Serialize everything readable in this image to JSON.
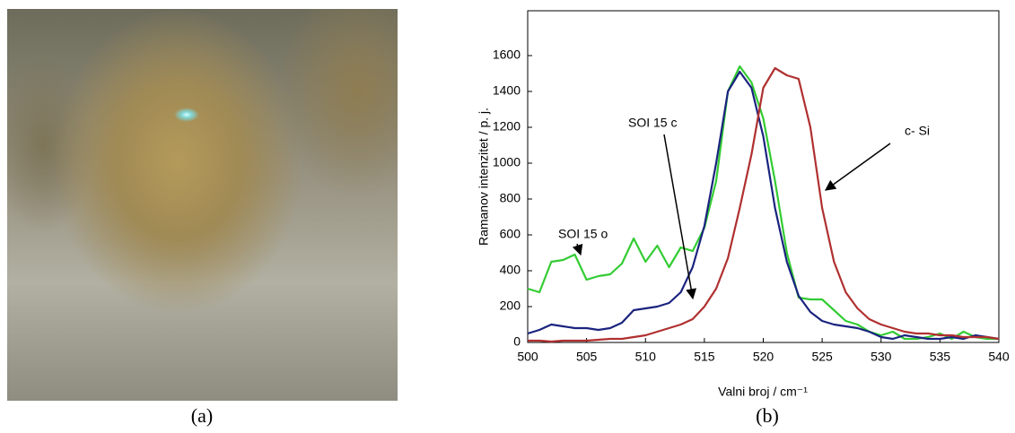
{
  "captions": [
    "(a)",
    "(b)"
  ],
  "chart_data": {
    "type": "line",
    "xlabel": "Valni broj / cm⁻¹",
    "ylabel": "Ramanov intenzitet / p. j.",
    "x": [
      500,
      501,
      502,
      503,
      504,
      505,
      506,
      507,
      508,
      509,
      510,
      511,
      512,
      513,
      514,
      515,
      516,
      517,
      518,
      519,
      520,
      521,
      522,
      523,
      524,
      525,
      526,
      527,
      528,
      529,
      530,
      531,
      532,
      533,
      534,
      535,
      536,
      537,
      538,
      539,
      540
    ],
    "series": [
      {
        "name": "SOI 15 o",
        "color": "#33cc33",
        "values": [
          300,
          280,
          450,
          460,
          490,
          350,
          370,
          380,
          440,
          580,
          450,
          540,
          420,
          530,
          510,
          640,
          900,
          1400,
          1540,
          1450,
          1250,
          900,
          500,
          250,
          240,
          240,
          180,
          120,
          100,
          60,
          40,
          60,
          20,
          20,
          30,
          50,
          20,
          60,
          30,
          20,
          20
        ]
      },
      {
        "name": "SOI 15 c",
        "color": "#1a237e",
        "values": [
          50,
          70,
          100,
          90,
          80,
          80,
          70,
          80,
          110,
          180,
          190,
          200,
          220,
          280,
          420,
          650,
          1000,
          1400,
          1510,
          1420,
          1150,
          750,
          450,
          260,
          170,
          120,
          100,
          90,
          80,
          60,
          30,
          20,
          40,
          30,
          20,
          20,
          30,
          20,
          40,
          30,
          20
        ]
      },
      {
        "name": "c- Si",
        "color": "#b03030",
        "values": [
          10,
          10,
          5,
          10,
          10,
          10,
          15,
          20,
          20,
          30,
          40,
          60,
          80,
          100,
          130,
          200,
          300,
          470,
          750,
          1050,
          1420,
          1530,
          1490,
          1470,
          1200,
          750,
          450,
          280,
          190,
          130,
          100,
          80,
          60,
          50,
          50,
          40,
          40,
          30,
          30,
          30,
          20
        ]
      }
    ],
    "xlim": [
      500,
      540
    ],
    "xticks": [
      500,
      505,
      510,
      515,
      520,
      525,
      530,
      535,
      540
    ],
    "ylim": [
      0,
      1850
    ],
    "yticks": [
      0,
      200,
      400,
      600,
      800,
      1000,
      1200,
      1400,
      1600
    ],
    "grid": false
  }
}
